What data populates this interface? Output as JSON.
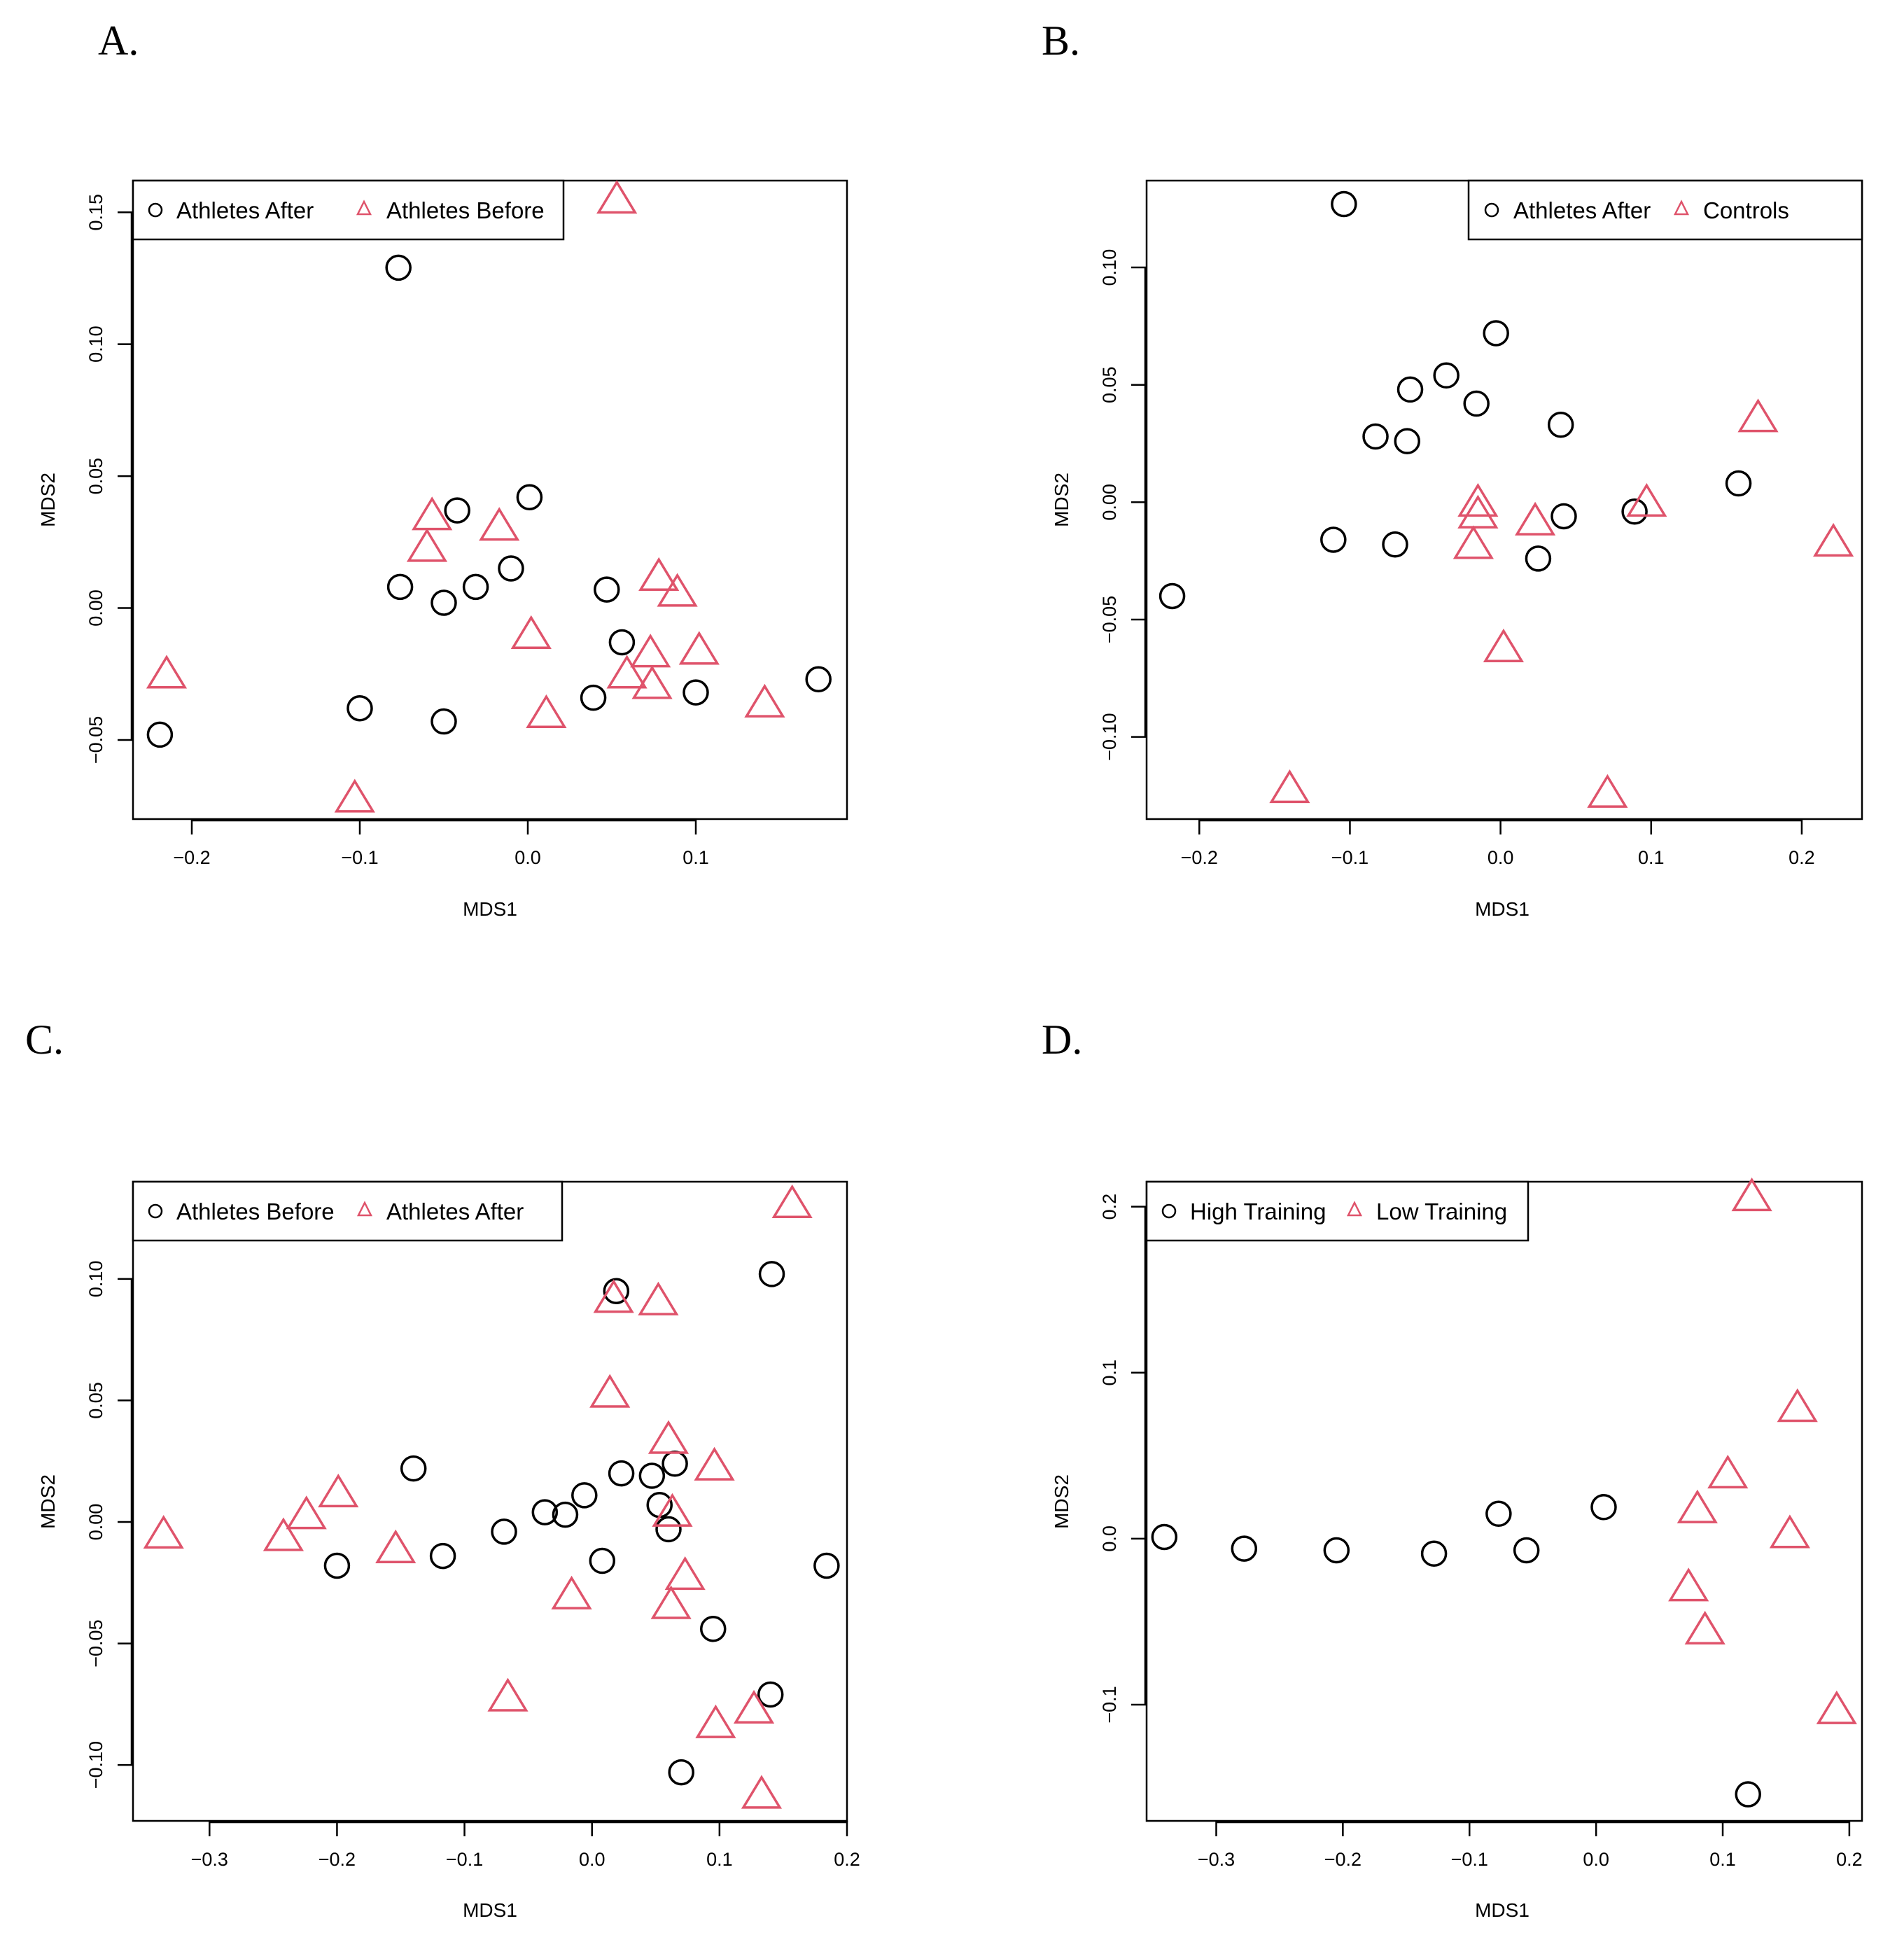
{
  "colors": {
    "series1": "#000000",
    "series2": "#DF536B"
  },
  "chart_data": [
    {
      "panel": "A.",
      "type": "scatter",
      "title": "",
      "xlabel": "MDS1",
      "ylabel": "MDS2",
      "xlim": [
        -0.235,
        0.19
      ],
      "ylim": [
        -0.08,
        0.162
      ],
      "xticks": [
        -0.2,
        -0.1,
        0.0,
        0.1
      ],
      "xtick_labels": [
        "−0.2",
        "−0.1",
        "0.0",
        "0.1"
      ],
      "yticks": [
        -0.05,
        0.0,
        0.05,
        0.1,
        0.15
      ],
      "ytick_labels": [
        "−0.05",
        "0.00",
        "0.05",
        "0.10",
        "0.15"
      ],
      "legend": {
        "position": "top-left",
        "entries": [
          "Athletes After",
          "Athletes Before"
        ]
      },
      "series": [
        {
          "name": "Athletes After",
          "marker": "circle",
          "color": "#000000",
          "x": [
            -0.219,
            -0.1,
            -0.077,
            -0.05,
            -0.05,
            -0.042,
            -0.076,
            -0.031,
            -0.01,
            0.001,
            0.047,
            0.056,
            0.039,
            0.1,
            0.173
          ],
          "y": [
            -0.048,
            -0.038,
            0.129,
            0.002,
            -0.043,
            0.037,
            0.008,
            0.008,
            0.015,
            0.042,
            0.007,
            -0.013,
            -0.034,
            -0.032,
            -0.027
          ]
        },
        {
          "name": "Athletes Before",
          "marker": "triangle",
          "color": "#DF536B",
          "x": [
            -0.215,
            -0.103,
            -0.057,
            -0.06,
            -0.017,
            0.002,
            0.011,
            0.053,
            0.059,
            0.073,
            0.074,
            0.078,
            0.089,
            0.102,
            0.141
          ],
          "y": [
            -0.025,
            -0.072,
            0.035,
            0.023,
            0.031,
            -0.01,
            -0.04,
            0.155,
            -0.025,
            -0.017,
            -0.029,
            0.012,
            0.006,
            -0.016,
            -0.036
          ]
        }
      ]
    },
    {
      "panel": "B.",
      "type": "scatter",
      "title": "",
      "xlabel": "MDS1",
      "ylabel": "MDS2",
      "xlim": [
        -0.235,
        0.24
      ],
      "ylim": [
        -0.135,
        0.137
      ],
      "xticks": [
        -0.2,
        -0.1,
        0.0,
        0.1,
        0.2
      ],
      "xtick_labels": [
        "−0.2",
        "−0.1",
        "0.0",
        "0.1",
        "0.2"
      ],
      "yticks": [
        -0.1,
        -0.05,
        0.0,
        0.05,
        0.1
      ],
      "ytick_labels": [
        "−0.10",
        "−0.05",
        "0.00",
        "0.05",
        "0.10"
      ],
      "legend": {
        "position": "top-right",
        "entries": [
          "Athletes After",
          "Controls"
        ]
      },
      "series": [
        {
          "name": "Athletes After",
          "marker": "circle",
          "color": "#000000",
          "x": [
            -0.218,
            -0.104,
            -0.111,
            -0.083,
            -0.07,
            -0.062,
            -0.06,
            -0.036,
            -0.016,
            -0.003,
            0.025,
            0.04,
            0.042,
            0.089,
            0.158
          ],
          "y": [
            -0.04,
            0.127,
            -0.016,
            0.028,
            -0.018,
            0.026,
            0.048,
            0.054,
            0.042,
            0.072,
            -0.024,
            0.033,
            -0.006,
            -0.004,
            0.008
          ]
        },
        {
          "name": "Controls",
          "marker": "triangle",
          "color": "#DF536B",
          "x": [
            -0.14,
            -0.015,
            -0.015,
            -0.018,
            0.002,
            0.023,
            0.071,
            0.097,
            0.171,
            0.221
          ],
          "y": [
            -0.122,
            0.0,
            -0.005,
            -0.018,
            -0.062,
            -0.008,
            -0.124,
            0.0,
            0.036,
            -0.017
          ]
        }
      ]
    },
    {
      "panel": "C.",
      "type": "scatter",
      "title": "",
      "xlabel": "MDS1",
      "ylabel": "MDS2",
      "xlim": [
        -0.36,
        0.2
      ],
      "ylim": [
        -0.123,
        0.14
      ],
      "xticks": [
        -0.3,
        -0.2,
        -0.1,
        0.0,
        0.1,
        0.2
      ],
      "xtick_labels": [
        "−0.3",
        "−0.2",
        "−0.1",
        "0.0",
        "0.1",
        "0.2"
      ],
      "yticks": [
        -0.1,
        -0.05,
        0.0,
        0.05,
        0.1
      ],
      "ytick_labels": [
        "−0.10",
        "−0.05",
        "0.00",
        "0.05",
        "0.10"
      ],
      "legend": {
        "position": "top-left",
        "entries": [
          "Athletes Before",
          "Athletes After"
        ]
      },
      "series": [
        {
          "name": "Athletes Before",
          "marker": "circle",
          "color": "#000000",
          "x": [
            -0.2,
            -0.14,
            -0.117,
            -0.069,
            -0.037,
            -0.021,
            -0.006,
            0.008,
            0.019,
            0.023,
            0.047,
            0.053,
            0.06,
            0.065,
            0.07,
            0.095,
            0.14,
            0.141,
            0.184
          ],
          "y": [
            -0.018,
            0.022,
            -0.014,
            -0.004,
            0.004,
            0.003,
            0.011,
            -0.016,
            0.095,
            0.02,
            0.019,
            0.007,
            -0.003,
            0.024,
            -0.103,
            -0.044,
            -0.071,
            0.102,
            -0.018
          ]
        },
        {
          "name": "Athletes After",
          "marker": "triangle",
          "color": "#DF536B",
          "x": [
            -0.336,
            -0.242,
            -0.224,
            -0.199,
            -0.154,
            -0.066,
            -0.016,
            0.014,
            0.017,
            0.052,
            0.06,
            0.062,
            0.063,
            0.073,
            0.096,
            0.097,
            0.127,
            0.133,
            0.157
          ],
          "y": [
            -0.005,
            -0.006,
            0.003,
            0.012,
            -0.011,
            -0.072,
            -0.03,
            0.053,
            0.092,
            0.091,
            0.034,
            -0.034,
            0.004,
            -0.022,
            0.023,
            -0.083,
            -0.077,
            -0.112,
            0.131
          ]
        }
      ]
    },
    {
      "panel": "D.",
      "type": "scatter",
      "title": "",
      "xlabel": "MDS1",
      "ylabel": "MDS2",
      "xlim": [
        -0.355,
        0.21
      ],
      "ylim": [
        -0.17,
        0.215
      ],
      "xticks": [
        -0.3,
        -0.2,
        -0.1,
        0.0,
        0.1,
        0.2
      ],
      "xtick_labels": [
        "−0.3",
        "−0.2",
        "−0.1",
        "0.0",
        "0.1",
        "0.2"
      ],
      "yticks": [
        -0.1,
        0.0,
        0.1,
        0.2
      ],
      "ytick_labels": [
        "−0.1",
        "0.0",
        "0.1",
        "0.2"
      ],
      "legend": {
        "position": "top-left",
        "entries": [
          "High Training",
          "Low Training"
        ]
      },
      "series": [
        {
          "name": "High Training",
          "marker": "circle",
          "color": "#000000",
          "x": [
            -0.341,
            -0.278,
            -0.205,
            -0.128,
            -0.077,
            -0.055,
            0.006,
            0.12
          ],
          "y": [
            0.001,
            -0.006,
            -0.007,
            -0.009,
            0.015,
            -0.007,
            0.019,
            -0.154
          ]
        },
        {
          "name": "Low Training",
          "marker": "triangle",
          "color": "#DF536B",
          "x": [
            0.073,
            0.08,
            0.086,
            0.104,
            0.123,
            0.153,
            0.159,
            0.19
          ],
          "y": [
            -0.029,
            0.018,
            -0.055,
            0.039,
            0.206,
            0.003,
            0.079,
            -0.103
          ]
        }
      ]
    }
  ]
}
